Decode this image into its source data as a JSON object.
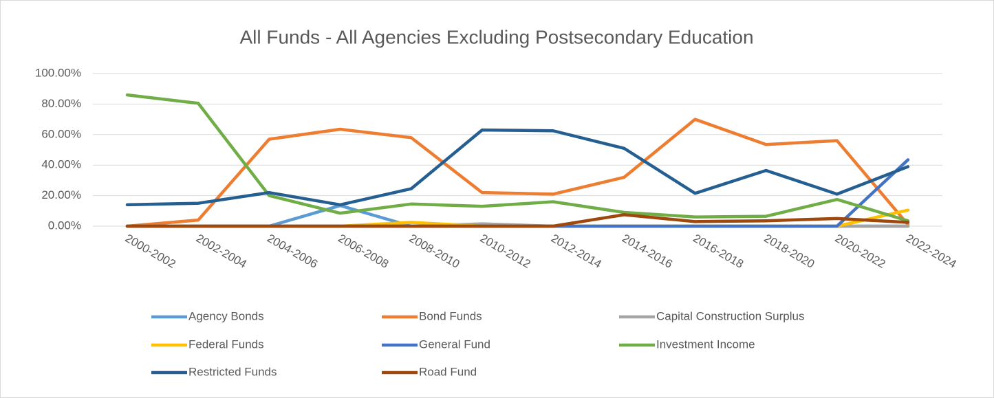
{
  "chart_data": {
    "type": "line",
    "title": "All Funds - All Agencies Excluding Postsecondary Education",
    "categories": [
      "2000-2002",
      "2002-2004",
      "2004-2006",
      "2006-2008",
      "2008-2010",
      "2010-2012",
      "2012-2014",
      "2014-2016",
      "2016-2018",
      "2018-2020",
      "2020-2022",
      "2022-2024"
    ],
    "series": [
      {
        "name": "Agency Bonds",
        "color": "#5B9BD5",
        "values": [
          0,
          0,
          0,
          13.5,
          0,
          0,
          0,
          0,
          0,
          0,
          0,
          0
        ]
      },
      {
        "name": "Bond Funds",
        "color": "#ED7D31",
        "values": [
          0,
          4,
          57,
          63.5,
          58,
          22,
          21,
          32,
          70,
          53.5,
          56,
          1
        ]
      },
      {
        "name": "Capital Construction Surplus",
        "color": "#A5A5A5",
        "values": [
          0,
          0,
          0,
          0,
          0,
          1.5,
          0,
          0,
          0,
          0,
          0,
          0
        ]
      },
      {
        "name": "Federal Funds",
        "color": "#FFC000",
        "values": [
          0,
          0,
          0,
          0,
          2.5,
          0,
          0,
          0,
          0,
          0,
          0,
          10.5
        ]
      },
      {
        "name": "General Fund",
        "color": "#4472C4",
        "values": [
          0,
          0,
          0,
          0,
          0,
          0,
          0,
          0,
          0,
          0,
          0,
          43.5
        ]
      },
      {
        "name": "Investment Income",
        "color": "#70AD47",
        "values": [
          86,
          80.5,
          20,
          8.5,
          14.5,
          13,
          16,
          9,
          6,
          6.5,
          17.5,
          3.5
        ]
      },
      {
        "name": "Restricted Funds",
        "color": "#255E91",
        "values": [
          14,
          15,
          22,
          14,
          24.5,
          63,
          62.5,
          51,
          21.5,
          36.5,
          21,
          39
        ]
      },
      {
        "name": "Road Fund",
        "color": "#9E480E",
        "values": [
          0,
          0,
          0,
          0,
          0,
          0,
          0,
          7.5,
          3,
          3.5,
          5,
          2.5
        ]
      }
    ],
    "ylim": [
      0,
      100
    ],
    "yticks": [
      {
        "value": 0,
        "label": "0.00%"
      },
      {
        "value": 20,
        "label": "20.00%"
      },
      {
        "value": 40,
        "label": "40.00%"
      },
      {
        "value": 60,
        "label": "60.00%"
      },
      {
        "value": 80,
        "label": "80.00%"
      },
      {
        "value": 100,
        "label": "100.00%"
      }
    ],
    "grid": true,
    "legend": "bottom"
  }
}
